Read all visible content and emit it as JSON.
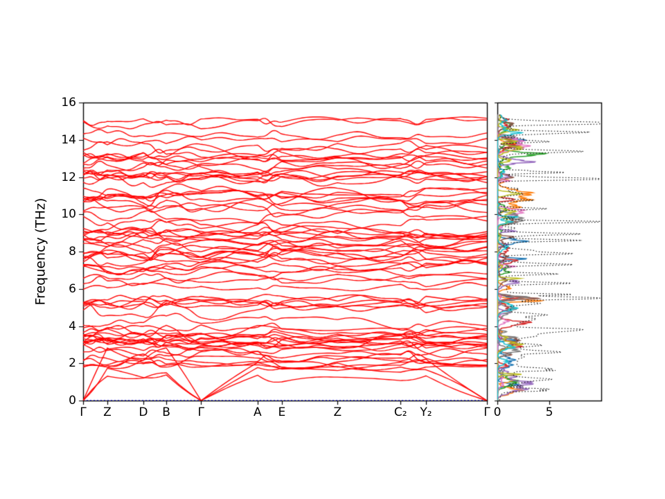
{
  "chart_data": [
    {
      "id": "phonon_band_structure",
      "type": "line",
      "panel": "left",
      "title": "",
      "xlabel": "",
      "ylabel": "Frequency (THz)",
      "ylim": [
        0,
        16
      ],
      "yticks": [
        0,
        2,
        4,
        6,
        8,
        10,
        12,
        14,
        16
      ],
      "grid": false,
      "line_color": "#ff0000",
      "zero_line": {
        "value": 0,
        "color": "#3333ff",
        "style": "dotted"
      },
      "kpath": {
        "labels": [
          "Γ",
          "Z",
          "D",
          "B",
          "Γ",
          "A",
          "E",
          "Z",
          "C₂",
          "Y₂",
          "Γ"
        ],
        "positions": [
          0,
          0.06,
          0.149,
          0.206,
          0.292,
          0.432,
          0.492,
          0.63,
          0.786,
          0.849,
          1.0
        ],
        "gamma_indices": [
          0,
          4,
          10
        ]
      },
      "bands_approx": {
        "acoustic_count": 3,
        "acoustic_max_thz": [
          1.6,
          2.2,
          2.9
        ],
        "optical_regions_thz": [
          [
            1.8,
            5.6
          ],
          [
            5.95,
            11.4
          ],
          [
            11.7,
            15.25
          ]
        ],
        "optical_counts": [
          26,
          32,
          18
        ],
        "max_freq_thz": 15.2,
        "seed": 42
      }
    },
    {
      "id": "phonon_dos",
      "type": "line",
      "panel": "right",
      "title": "",
      "xlabel": "",
      "xlim": [
        0,
        10
      ],
      "xticks": [
        "0",
        "5"
      ],
      "xtick_values": [
        0,
        5
      ],
      "ylim": [
        0,
        16
      ],
      "total_dos": {
        "color": "#000000",
        "style": "dotted"
      },
      "projected_colors": [
        "#1f77b4",
        "#ff7f0e",
        "#2ca02c",
        "#d62728",
        "#9467bd",
        "#8c564b",
        "#e377c2",
        "#7f7f7f",
        "#bcbd22",
        "#17becf"
      ],
      "total_peaks": [
        {
          "f": 2.6,
          "a": 3.2,
          "w": 0.08
        },
        {
          "f": 3.8,
          "a": 3.0,
          "w": 0.08
        },
        {
          "f": 4.6,
          "a": 3.4,
          "w": 0.08
        },
        {
          "f": 5.5,
          "a": 9.0,
          "w": 0.1
        },
        {
          "f": 5.7,
          "a": 6.0,
          "w": 0.06
        },
        {
          "f": 6.3,
          "a": 5.5,
          "w": 0.07
        },
        {
          "f": 6.8,
          "a": 5.0,
          "w": 0.07
        },
        {
          "f": 7.3,
          "a": 6.5,
          "w": 0.07
        },
        {
          "f": 8.6,
          "a": 7.5,
          "w": 0.08
        },
        {
          "f": 8.95,
          "a": 6.0,
          "w": 0.07
        },
        {
          "f": 9.6,
          "a": 5.5,
          "w": 0.07
        },
        {
          "f": 10.3,
          "a": 4.5,
          "w": 0.07
        },
        {
          "f": 11.9,
          "a": 7.0,
          "w": 0.07
        },
        {
          "f": 12.25,
          "a": 5.5,
          "w": 0.07
        },
        {
          "f": 13.9,
          "a": 4.5,
          "w": 0.07
        },
        {
          "f": 14.4,
          "a": 6.5,
          "w": 0.07
        },
        {
          "f": 14.9,
          "a": 9.3,
          "w": 0.08
        }
      ],
      "seed": 7
    }
  ]
}
